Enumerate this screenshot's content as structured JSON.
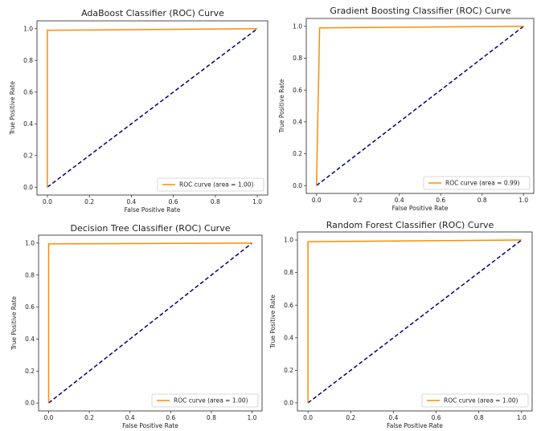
{
  "chart_data": [
    {
      "type": "line",
      "title": "AdaBoost Classifier (ROC) Curve",
      "xlabel": "False Positive Rate",
      "ylabel": "True Positive Rate",
      "xlim": [
        0,
        1
      ],
      "ylim": [
        0,
        1
      ],
      "x_ticks": [
        "0.0",
        "0.2",
        "0.4",
        "0.6",
        "0.8",
        "1.0"
      ],
      "y_ticks": [
        "0.0",
        "0.2",
        "0.4",
        "0.6",
        "0.8",
        "1.0"
      ],
      "grid": false,
      "legend_position": "bottom-right",
      "series": [
        {
          "name": "ROC curve (area = 1.00)",
          "color": "#ff8c00",
          "style": "solid",
          "x": [
            0,
            0,
            1
          ],
          "y": [
            0,
            0.99,
            1
          ]
        },
        {
          "color": "#000080",
          "style": "dashed",
          "x": [
            0,
            1
          ],
          "y": [
            0,
            1
          ]
        }
      ]
    },
    {
      "type": "line",
      "title": "Gradient Boosting Classifier (ROC) Curve",
      "xlabel": "False Positive Rate",
      "ylabel": "True Positive Rate",
      "xlim": [
        0,
        1
      ],
      "ylim": [
        0,
        1
      ],
      "x_ticks": [
        "0.0",
        "0.2",
        "0.4",
        "0.6",
        "0.8",
        "1.0"
      ],
      "y_ticks": [
        "0.0",
        "0.2",
        "0.4",
        "0.6",
        "0.8",
        "1.0"
      ],
      "grid": false,
      "legend_position": "bottom-right",
      "series": [
        {
          "name": "ROC curve (area = 0.99)",
          "color": "#ff8c00",
          "style": "solid",
          "x": [
            0,
            0.015,
            1
          ],
          "y": [
            0,
            0.99,
            1
          ]
        },
        {
          "color": "#000080",
          "style": "dashed",
          "x": [
            0,
            1
          ],
          "y": [
            0,
            1
          ]
        }
      ]
    },
    {
      "type": "line",
      "title": "Decision Tree Classifier (ROC) Curve",
      "xlabel": "False Positive Rate",
      "ylabel": "True Positive Rate",
      "xlim": [
        0,
        1
      ],
      "ylim": [
        0,
        1
      ],
      "x_ticks": [
        "0.0",
        "0.2",
        "0.4",
        "0.6",
        "0.8",
        "1.0"
      ],
      "y_ticks": [
        "0.0",
        "0.2",
        "0.4",
        "0.6",
        "0.8",
        "1.0"
      ],
      "grid": false,
      "legend_position": "bottom-right",
      "series": [
        {
          "name": "ROC curve (area = 1.00)",
          "color": "#ff8c00",
          "style": "solid",
          "x": [
            0,
            0,
            1
          ],
          "y": [
            0,
            0.995,
            1
          ]
        },
        {
          "color": "#000080",
          "style": "dashed",
          "x": [
            0,
            1
          ],
          "y": [
            0,
            1
          ]
        }
      ]
    },
    {
      "type": "line",
      "title": "Random Forest Classifier (ROC) Curve",
      "xlabel": "False Positive Rate",
      "ylabel": "True Positive Rate",
      "xlim": [
        0,
        1
      ],
      "ylim": [
        0,
        1
      ],
      "x_ticks": [
        "0.0",
        "0.2",
        "0.4",
        "0.6",
        "0.8",
        "1.0"
      ],
      "y_ticks": [
        "0.0",
        "0.2",
        "0.4",
        "0.6",
        "0.8",
        "1.0"
      ],
      "grid": false,
      "legend_position": "bottom-right",
      "series": [
        {
          "name": "ROC curve (area = 1.00)",
          "color": "#ff8c00",
          "style": "solid",
          "x": [
            0,
            0,
            1
          ],
          "y": [
            0,
            0.99,
            1
          ]
        },
        {
          "color": "#000080",
          "style": "dashed",
          "x": [
            0,
            1
          ],
          "y": [
            0,
            1
          ]
        }
      ]
    }
  ]
}
